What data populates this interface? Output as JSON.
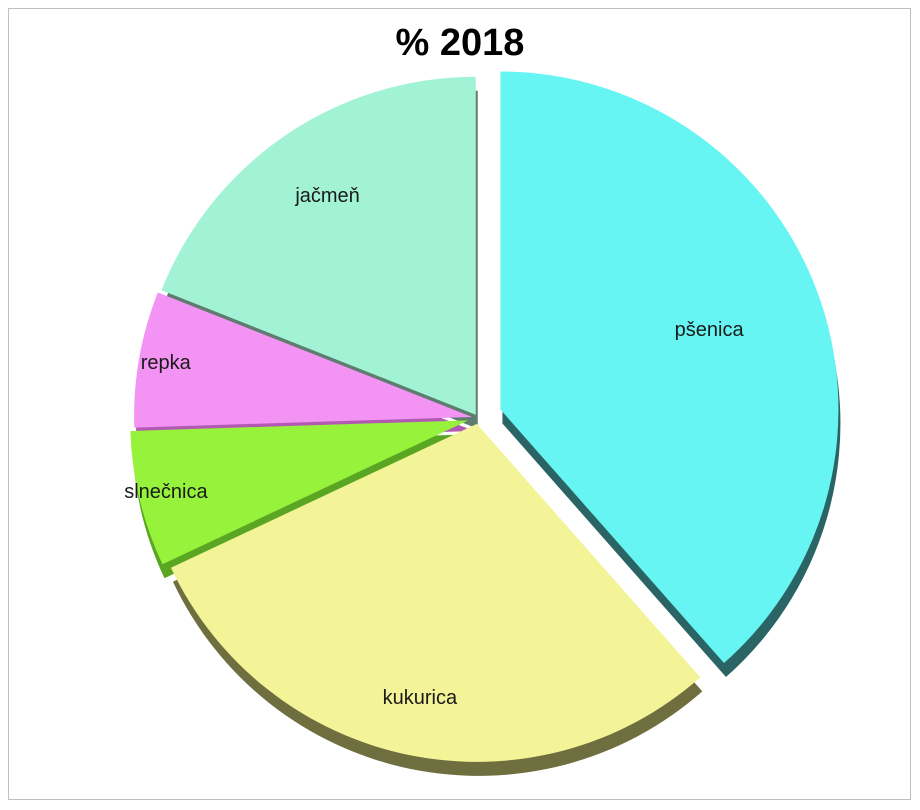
{
  "chart_data": {
    "type": "pie",
    "title": "% 2018",
    "slices": [
      {
        "label": "pšenica",
        "value": 38.5,
        "color": "#66f5f3",
        "shade": "#2a6464"
      },
      {
        "label": "kukurica",
        "value": 29.5,
        "color": "#f3f397",
        "shade": "#6e6e3e"
      },
      {
        "label": "slnečnica",
        "value": 6.5,
        "color": "#97f23c",
        "shade": "#5aa622"
      },
      {
        "label": "repka",
        "value": 6.5,
        "color": "#f393f3",
        "shade": "#b25ab2"
      },
      {
        "label": "jačmeň",
        "value": 19.0,
        "color": "#a2f3d6",
        "shade": "#5e7c70"
      }
    ]
  }
}
